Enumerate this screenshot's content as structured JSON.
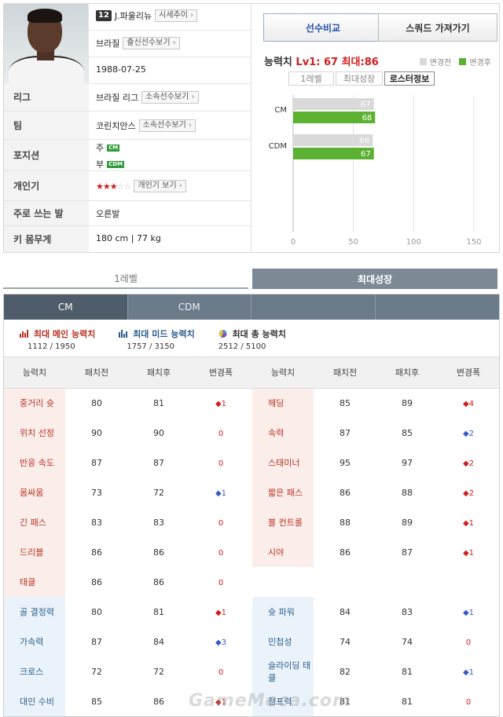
{
  "player": {
    "number": "12",
    "name": "J.파울리뉴",
    "market_btn": "시세추이",
    "nation": "브라질",
    "nation_btn": "출신선수보기",
    "birth": "1988-07-25",
    "rows": {
      "league_label": "리그",
      "league_value": "브라질 리그",
      "league_btn": "소속선수보기",
      "team_label": "팀",
      "team_value": "코린치안스",
      "team_btn": "소속선수보기",
      "position_label": "포지션",
      "pos_main_prefix": "주",
      "pos_main": "CM",
      "pos_sub_prefix": "부",
      "pos_sub": "CDM",
      "popularity_label": "개인기",
      "popularity_btn": "개인기 보기",
      "foot_label": "주로 쓰는 발",
      "foot_value": "오른발",
      "body_label": "키 몸무게",
      "body_value": "180 cm | 77 kg"
    },
    "skill_stars": 3,
    "skill_stars_total": 5
  },
  "actions": {
    "compare": "선수비교",
    "squad": "스쿼드 가져가기"
  },
  "ability": {
    "label": "능력치",
    "lv1": "Lv1: 67",
    "max": "최대:86"
  },
  "legend": {
    "before": "변경전",
    "after": "변경후"
  },
  "subtabs": [
    "1레벨",
    "최대성장",
    "로스터정보"
  ],
  "colors": {
    "before": "#d9d9d9",
    "after": "#5cb133",
    "accent": "#d01c1c"
  },
  "chart_data": {
    "type": "bar",
    "orientation": "horizontal",
    "categories": [
      "CM",
      "CDM"
    ],
    "series": [
      {
        "name": "변경전",
        "values": [
          67,
          66
        ]
      },
      {
        "name": "변경후",
        "values": [
          68,
          67
        ]
      }
    ],
    "xlim": [
      0,
      150
    ],
    "xticks": [
      0,
      50,
      100,
      150
    ],
    "grid": true
  },
  "level_tabs": [
    "1레벨",
    "최대성장"
  ],
  "position_tabs": [
    "CM",
    "CDM",
    "",
    ""
  ],
  "summary": [
    {
      "title": "최대 메인 능력치",
      "value": "1112 / 1950",
      "icon": "bar-chart-red-icon",
      "color": "#b83222"
    },
    {
      "title": "최대 미드 능력치",
      "value": "1757 / 3150",
      "icon": "bar-chart-blue-icon",
      "color": "#2a5c8e"
    },
    {
      "title": "최대 총 능력치",
      "value": "2512 / 5100",
      "icon": "pie-chart-icon",
      "color": "#333333"
    }
  ],
  "table": {
    "headers": [
      "능력치",
      "패치전",
      "패치후",
      "변경폭",
      "능력치",
      "패치전",
      "패치후",
      "변경폭"
    ],
    "rows": [
      {
        "l": [
          "중거리 슛",
          "80",
          "81",
          "+1",
          "up"
        ],
        "r": [
          "헤딩",
          "85",
          "89",
          "+4",
          "up"
        ],
        "lc": "pink",
        "rc": "pink"
      },
      {
        "l": [
          "위치 선정",
          "90",
          "90",
          "0",
          "zr"
        ],
        "r": [
          "속력",
          "87",
          "85",
          "-2",
          "dn"
        ],
        "lc": "pink",
        "rc": "pink"
      },
      {
        "l": [
          "반응 속도",
          "87",
          "87",
          "0",
          "zr"
        ],
        "r": [
          "스태미너",
          "95",
          "97",
          "+2",
          "up"
        ],
        "lc": "pink",
        "rc": "pink"
      },
      {
        "l": [
          "몸싸움",
          "73",
          "72",
          "-1",
          "dn"
        ],
        "r": [
          "짧은 패스",
          "86",
          "88",
          "+2",
          "up"
        ],
        "lc": "pink",
        "rc": "pink"
      },
      {
        "l": [
          "긴 패스",
          "83",
          "83",
          "0",
          "zr"
        ],
        "r": [
          "볼 컨트롤",
          "88",
          "89",
          "+1",
          "up"
        ],
        "lc": "pink",
        "rc": "pink"
      },
      {
        "l": [
          "드리블",
          "86",
          "86",
          "0",
          "zr"
        ],
        "r": [
          "시야",
          "86",
          "87",
          "+1",
          "up"
        ],
        "lc": "pink",
        "rc": "pink"
      },
      {
        "l": [
          "태클",
          "86",
          "86",
          "0",
          "zr"
        ],
        "r": [
          "",
          "",
          "",
          "",
          ""
        ],
        "lc": "pink",
        "rc": "none"
      },
      {
        "l": [
          "골 결정력",
          "80",
          "81",
          "+1",
          "up"
        ],
        "r": [
          "슛 파워",
          "84",
          "83",
          "-1",
          "dn"
        ],
        "lc": "blue",
        "rc": "blue"
      },
      {
        "l": [
          "가속력",
          "87",
          "84",
          "-3",
          "dn"
        ],
        "r": [
          "민첩성",
          "74",
          "74",
          "0",
          "zr"
        ],
        "lc": "blue",
        "rc": "blue"
      },
      {
        "l": [
          "크로스",
          "72",
          "72",
          "0",
          "zr"
        ],
        "r": [
          "슬라이딩 태클",
          "82",
          "81",
          "-1",
          "dn"
        ],
        "lc": "blue",
        "rc": "blue"
      },
      {
        "l": [
          "대인 수비",
          "85",
          "86",
          "+1",
          "up"
        ],
        "r": [
          "점프력",
          "81",
          "81",
          "0",
          "zr"
        ],
        "lc": "blue",
        "rc": "blue"
      }
    ]
  },
  "watermark": "GameMeca.com"
}
